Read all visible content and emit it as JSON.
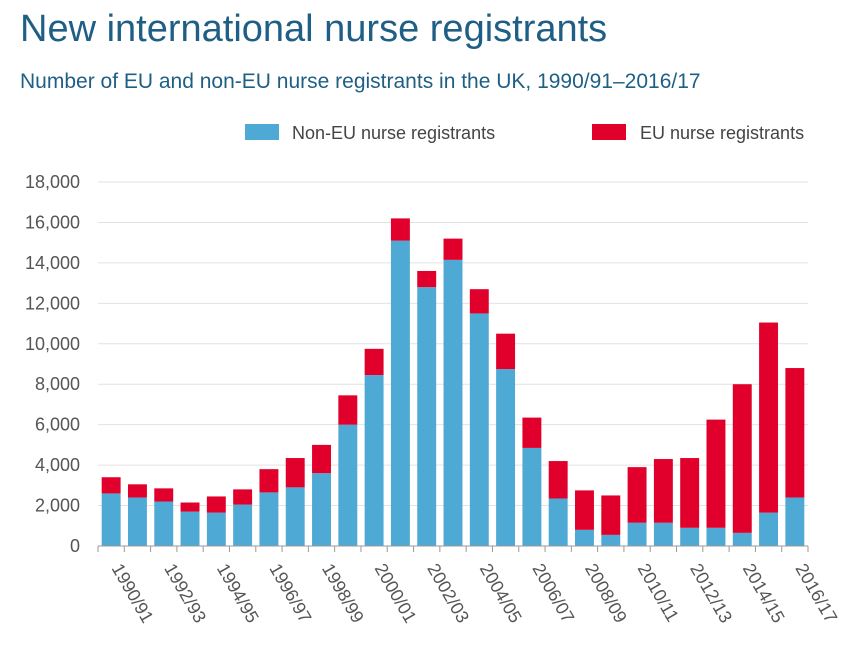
{
  "title": "New international nurse registrants",
  "subtitle": "Number of EU and non-EU nurse registrants in the UK, 1990/91–2016/17",
  "colors": {
    "non_eu": "#4fa9d5",
    "eu": "#e0002b",
    "grid": "#e2e2e2",
    "axis": "#999999"
  },
  "chart_data": {
    "type": "bar",
    "stacked": true,
    "categories": [
      "1990/91",
      "1991/92",
      "1992/93",
      "1993/94",
      "1994/95",
      "1995/96",
      "1996/97",
      "1997/98",
      "1998/99",
      "1999/00",
      "2000/01",
      "2001/02",
      "2002/03",
      "2003/04",
      "2004/05",
      "2005/06",
      "2006/07",
      "2007/08",
      "2008/09",
      "2009/10",
      "2010/11",
      "2011/12",
      "2012/13",
      "2013/14",
      "2014/15",
      "2015/16",
      "2016/17"
    ],
    "tick_labels": [
      "1990/91",
      "",
      "1992/93",
      "",
      "1994/95",
      "",
      "1996/97",
      "",
      "1998/99",
      "",
      "2000/01",
      "",
      "2002/03",
      "",
      "2004/05",
      "",
      "2006/07",
      "",
      "2008/09",
      "",
      "2010/11",
      "",
      "2012/13",
      "",
      "2014/15",
      "",
      "2016/17"
    ],
    "series": [
      {
        "name": "Non-EU nurse registrants",
        "values": [
          2600,
          2400,
          2200,
          1700,
          1650,
          2050,
          2650,
          2900,
          3600,
          6000,
          8450,
          15100,
          12800,
          14150,
          11500,
          8750,
          4850,
          2350,
          800,
          550,
          1150,
          1150,
          900,
          900,
          650,
          1650,
          2400
        ]
      },
      {
        "name": "EU nurse registrants",
        "values": [
          800,
          650,
          650,
          450,
          800,
          750,
          1150,
          1450,
          1400,
          1450,
          1300,
          1100,
          800,
          1050,
          1200,
          1750,
          1500,
          1850,
          1950,
          1950,
          2750,
          3150,
          3450,
          5350,
          7350,
          9400,
          6400
        ]
      }
    ],
    "ylim": [
      0,
      18000
    ],
    "yticks": [
      0,
      2000,
      4000,
      6000,
      8000,
      10000,
      12000,
      14000,
      16000,
      18000
    ],
    "ytick_labels": [
      "0",
      "2,000",
      "4,000",
      "6,000",
      "8,000",
      "10,000",
      "12,000",
      "14,000",
      "16,000",
      "18,000"
    ],
    "xlabel": "",
    "ylabel": "",
    "grid": true,
    "legend_position": "top-right"
  }
}
